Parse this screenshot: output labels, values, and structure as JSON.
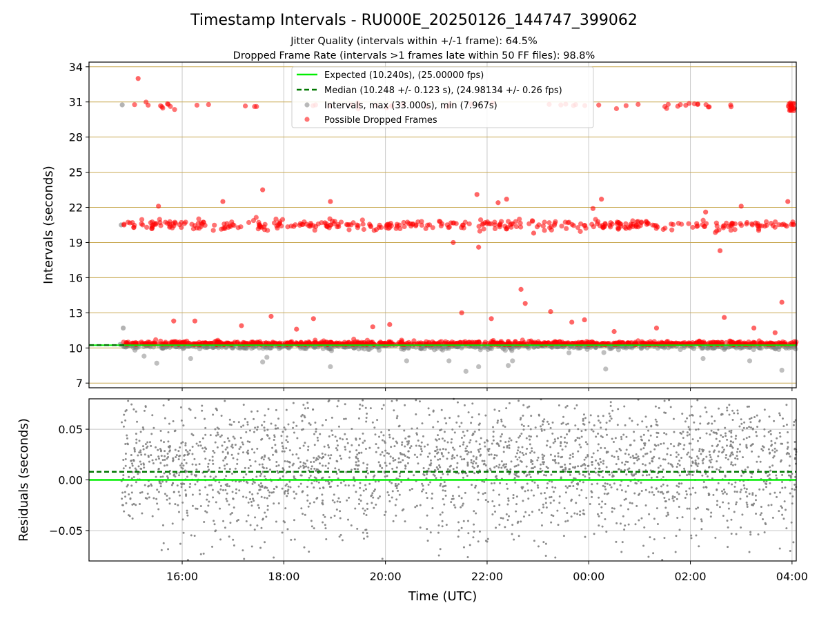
{
  "title": "Timestamp Intervals - RU000E_20250126_144747_399062",
  "subtitle_lines": [
    "Jitter Quality (intervals within +/-1 frame): 64.5%",
    "Dropped Frame Rate (intervals >1 frames late within 50 FF files): 98.8%"
  ],
  "colors": {
    "expected": "#00ee00",
    "median": "#007700",
    "intervals": "#808080",
    "dropped": "#ff0000",
    "gridline_top": "#c8a850",
    "gridline": "#c8c8c8"
  },
  "chart_data": [
    {
      "type": "scatter",
      "panel": "intervals",
      "xlabel": "",
      "ylabel": "Intervals (seconds)",
      "x_unit": "UTC time (hours, span crosses midnight: 24:00 = 00:00 of next day)",
      "xlim": [
        "14:10",
        "28:05"
      ],
      "ylim": [
        6.6,
        34.4
      ],
      "yticks": [
        7,
        10,
        13,
        16,
        19,
        22,
        25,
        28,
        31,
        34
      ],
      "grid": true,
      "legend_position": "top-center",
      "legend": [
        {
          "key": "expected",
          "label": "Expected (10.240s), (25.00000 fps)",
          "style": "solid-line"
        },
        {
          "key": "median",
          "label": "Median (10.248 +/- 0.123 s), (24.98134 +/- 0.26 fps)",
          "style": "dashed-line"
        },
        {
          "key": "intervals",
          "label": "Intervals, max (33.000s), min (7.967s)",
          "style": "marker"
        },
        {
          "key": "dropped",
          "label": "Possible Dropped Frames",
          "style": "marker"
        }
      ],
      "lines": {
        "expected": 10.24,
        "median": 10.248
      },
      "data_start": "14:48",
      "data_end": "28:05",
      "clusters": {
        "base": {
          "center": 10.24,
          "spread": 0.12
        },
        "double": {
          "center": 20.5,
          "spread": 0.2
        },
        "triple": {
          "center": 30.7,
          "spread": 0.12
        }
      },
      "outliers": [
        {
          "x": "15:08",
          "y": 33.0
        },
        {
          "x": "15:32",
          "y": 22.1
        },
        {
          "x": "17:35",
          "y": 23.5
        },
        {
          "x": "16:48",
          "y": 22.5
        },
        {
          "x": "18:55",
          "y": 22.5
        },
        {
          "x": "21:48",
          "y": 23.1
        },
        {
          "x": "22:13",
          "y": 22.4
        },
        {
          "x": "22:23",
          "y": 22.7
        },
        {
          "x": "24:05",
          "y": 21.9
        },
        {
          "x": "24:15",
          "y": 22.7
        },
        {
          "x": "26:18",
          "y": 21.6
        },
        {
          "x": "27:00",
          "y": 22.1
        },
        {
          "x": "27:55",
          "y": 22.5
        },
        {
          "x": "26:35",
          "y": 18.3
        },
        {
          "x": "21:20",
          "y": 19.0
        },
        {
          "x": "21:50",
          "y": 18.6
        },
        {
          "x": "22:55",
          "y": 19.8
        },
        {
          "x": "22:40",
          "y": 15.0
        },
        {
          "x": "22:45",
          "y": 13.8
        },
        {
          "x": "23:15",
          "y": 13.1
        },
        {
          "x": "21:30",
          "y": 13.0
        },
        {
          "x": "27:48",
          "y": 13.9
        },
        {
          "x": "17:45",
          "y": 12.7
        },
        {
          "x": "18:35",
          "y": 12.5
        },
        {
          "x": "16:15",
          "y": 12.3
        },
        {
          "x": "15:50",
          "y": 12.3
        },
        {
          "x": "20:05",
          "y": 12.0
        },
        {
          "x": "22:05",
          "y": 12.5
        },
        {
          "x": "26:40",
          "y": 12.6
        },
        {
          "x": "23:55",
          "y": 12.4
        },
        {
          "x": "17:10",
          "y": 11.9
        },
        {
          "x": "27:15",
          "y": 11.7
        },
        {
          "x": "27:40",
          "y": 11.3
        },
        {
          "x": "18:15",
          "y": 11.6
        },
        {
          "x": "19:45",
          "y": 11.8
        },
        {
          "x": "23:40",
          "y": 12.2
        },
        {
          "x": "24:30",
          "y": 11.4
        },
        {
          "x": "25:20",
          "y": 11.7
        }
      ],
      "low_outliers": [
        {
          "x": "15:30",
          "y": 8.7
        },
        {
          "x": "17:35",
          "y": 8.8
        },
        {
          "x": "17:40",
          "y": 9.2
        },
        {
          "x": "18:55",
          "y": 8.4
        },
        {
          "x": "20:25",
          "y": 8.9
        },
        {
          "x": "21:15",
          "y": 8.9
        },
        {
          "x": "21:35",
          "y": 8.0
        },
        {
          "x": "21:50",
          "y": 8.4
        },
        {
          "x": "22:25",
          "y": 8.5
        },
        {
          "x": "22:30",
          "y": 8.9
        },
        {
          "x": "24:20",
          "y": 8.2
        },
        {
          "x": "26:15",
          "y": 9.1
        },
        {
          "x": "27:10",
          "y": 8.9
        },
        {
          "x": "27:48",
          "y": 8.1
        },
        {
          "x": "16:10",
          "y": 9.1
        },
        {
          "x": "15:15",
          "y": 9.3
        }
      ]
    },
    {
      "type": "scatter",
      "panel": "residuals",
      "xlabel": "Time (UTC)",
      "ylabel": "Residuals (seconds)",
      "xlim": [
        "14:10",
        "28:05"
      ],
      "ylim": [
        -0.08,
        0.08
      ],
      "yticks": [
        -0.05,
        0.0,
        0.05
      ],
      "ytick_labels": [
        "−0.05",
        "0.00",
        "0.05"
      ],
      "xticks": [
        "16:00",
        "18:00",
        "20:00",
        "22:00",
        "00:00",
        "02:00",
        "04:00"
      ],
      "xtick_hours": [
        16,
        18,
        20,
        22,
        24,
        26,
        28
      ],
      "grid": true,
      "lines": {
        "expected": 0.0,
        "median": 0.008
      },
      "data_start": "14:48",
      "data_end": "28:05",
      "residual_distribution": {
        "center": 0.015,
        "spread": 0.035,
        "clip": [
          -0.08,
          0.08
        ]
      }
    }
  ]
}
